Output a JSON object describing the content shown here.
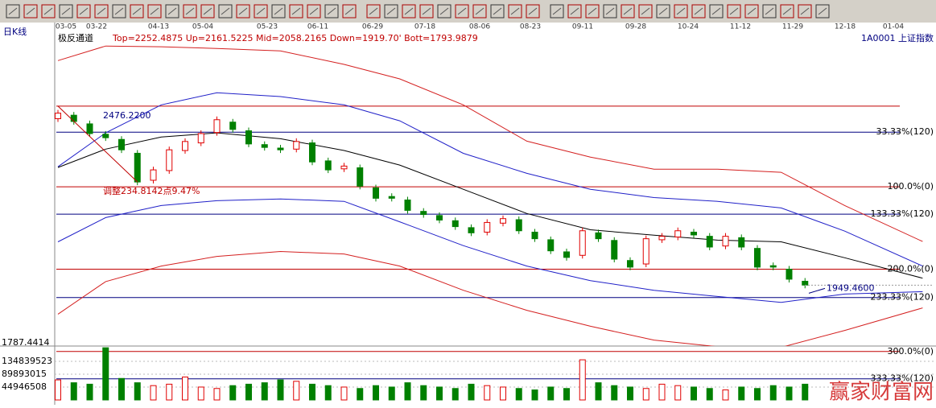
{
  "header": {
    "period": "日K线",
    "indicator": "极反通道",
    "params": "Top=2252.4875 Up=2161.5225 Mid=2058.2165 Down=1919.70' Bott=1793.9879",
    "symbol": "1A0001 上证指数"
  },
  "dates": [
    "03-05",
    "03-22",
    "04-13",
    "05-04",
    "05-23",
    "06-11",
    "06-29",
    "07-18",
    "08-06",
    "08-23",
    "09-11",
    "09-28",
    "10-24",
    "11-12",
    "11-29",
    "12-18",
    "01-04"
  ],
  "chart_data": {
    "type": "candlestick",
    "ylim": [
      1787.4414,
      2690
    ],
    "open": [
      2440,
      2450,
      2425,
      2395,
      2380,
      2340,
      2262,
      2290,
      2348,
      2370,
      2400,
      2430,
      2405,
      2365,
      2355,
      2352,
      2370,
      2318,
      2295,
      2298,
      2240,
      2215,
      2205,
      2172,
      2160,
      2145,
      2125,
      2112,
      2138,
      2148,
      2112,
      2090,
      2055,
      2045,
      2110,
      2088,
      2030,
      2020,
      2090,
      2098,
      2112,
      2100,
      2072,
      2096,
      2065,
      2015,
      2005,
      1970
    ],
    "close": [
      2456,
      2432,
      2397,
      2385,
      2350,
      2257,
      2292,
      2350,
      2374,
      2397,
      2437,
      2409,
      2367,
      2357,
      2350,
      2374,
      2315,
      2292,
      2303,
      2245,
      2210,
      2210,
      2175,
      2163,
      2147,
      2128,
      2110,
      2140,
      2151,
      2116,
      2093,
      2058,
      2039,
      2116,
      2093,
      2034,
      2011,
      2093,
      2100,
      2116,
      2104,
      2069,
      2100,
      2069,
      2011,
      2011,
      1976,
      1959
    ],
    "curve_x": [
      0,
      3,
      6.5,
      10,
      14,
      18,
      21.5,
      25.5,
      29.5,
      33.5,
      37.5,
      41.5,
      45.5,
      49.5,
      54.4
    ],
    "series": [
      {
        "name": "top",
        "color": "#d42020",
        "values": [
          2608,
          2650,
          2648,
          2643,
          2636,
          2597,
          2555,
          2480,
          2375,
          2329,
          2294,
          2294,
          2285,
          2189,
          2085
        ]
      },
      {
        "name": "up",
        "color": "#2020c8",
        "values": [
          2301,
          2399,
          2480,
          2515,
          2504,
          2480,
          2434,
          2340,
          2282,
          2236,
          2212,
          2201,
          2182,
          2115,
          2014
        ]
      },
      {
        "name": "mid",
        "color": "#000000",
        "values": [
          2299,
          2352,
          2387,
          2399,
          2382,
          2348,
          2306,
          2236,
          2166,
          2119,
          2103,
          2089,
          2084,
          2038,
          1979
        ]
      },
      {
        "name": "down",
        "color": "#2020c8",
        "values": [
          2084,
          2154,
          2189,
          2203,
          2208,
          2201,
          2142,
          2073,
          2014,
          1972,
          1944,
          1926,
          1909,
          1933,
          1940
        ]
      },
      {
        "name": "bott",
        "color": "#d42020",
        "values": [
          1875,
          1969,
          2014,
          2042,
          2056,
          2049,
          2014,
          1944,
          1886,
          1840,
          1800,
          1781,
          1779,
          1828,
          1893
        ]
      }
    ],
    "levels": [
      {
        "value": 2476.22,
        "color": "#c00000",
        "label": "2476.2200"
      },
      {
        "value": 2401,
        "color": "#000080",
        "label": "33.33%(120)"
      },
      {
        "value": 2243,
        "color": "#c00000",
        "label": "100.0%(0)"
      },
      {
        "value": 2164,
        "color": "#000080",
        "label": "133.33%(120)"
      },
      {
        "value": 2005,
        "color": "#c00000",
        "label": "200.0%(0)"
      },
      {
        "value": 1923,
        "color": "#000080",
        "label": "233.33%(120)"
      },
      {
        "value": 1767,
        "color": "#c00000",
        "label": "300.0%(0)"
      },
      {
        "value": 1688,
        "color": "#000080",
        "label": "333.33%(120)"
      }
    ],
    "annotation": "调整234.8142点9.47%",
    "last_label": "1949.4600",
    "last_value": 1949.46,
    "bottom_label": "1787.4414",
    "volume": {
      "ylim": [
        0,
        188000000
      ],
      "yticks": [
        44946508,
        89893015,
        134839523
      ],
      "values": [
        70000000,
        60000000,
        55000000,
        182000000,
        75000000,
        60000000,
        50000000,
        55000000,
        80000000,
        45000000,
        40000000,
        50000000,
        55000000,
        60000000,
        70000000,
        65000000,
        55000000,
        50000000,
        45000000,
        40000000,
        50000000,
        45000000,
        60000000,
        50000000,
        45000000,
        40000000,
        55000000,
        50000000,
        45000000,
        40000000,
        35000000,
        45000000,
        40000000,
        140000000,
        60000000,
        50000000,
        45000000,
        40000000,
        55000000,
        50000000,
        45000000,
        40000000,
        35000000,
        45000000,
        40000000,
        50000000,
        45000000,
        55000000
      ]
    }
  },
  "watermark": "赢家财富网"
}
